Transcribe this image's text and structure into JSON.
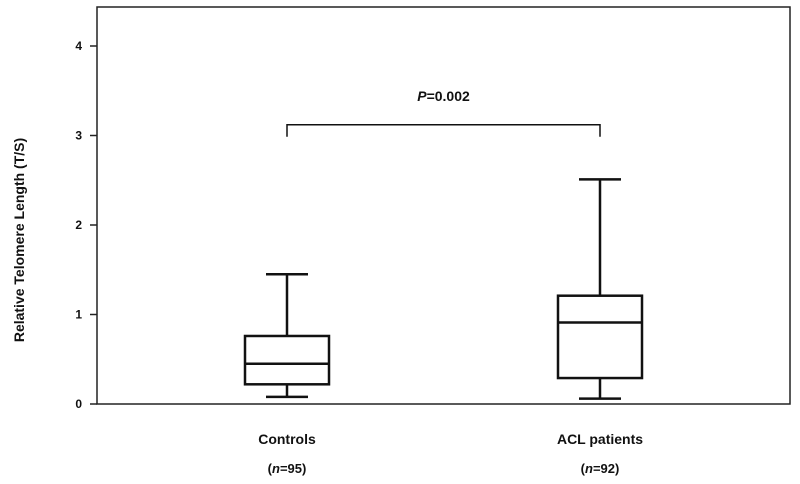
{
  "chart_data": {
    "type": "box",
    "ylabel": "Relative Telomere Length (T/S)",
    "xlabel": "",
    "ylim": [
      0,
      4.4
    ],
    "yticks": [
      0,
      1,
      2,
      3,
      4
    ],
    "grid": false,
    "categories": [
      "Controls",
      "ACL patients"
    ],
    "n_labels": [
      {
        "italic": "n",
        "rest": "=95"
      },
      {
        "italic": "n",
        "rest": "=92"
      }
    ],
    "boxes": [
      {
        "name": "Controls",
        "min": 0.08,
        "q1": 0.22,
        "median": 0.45,
        "q3": 0.76,
        "max": 1.45
      },
      {
        "name": "ACL patients",
        "min": 0.06,
        "q1": 0.29,
        "median": 0.91,
        "q3": 1.21,
        "max": 2.51
      }
    ],
    "significance": {
      "italic": "P",
      "rest": "=0.002",
      "y": 3.12
    }
  }
}
